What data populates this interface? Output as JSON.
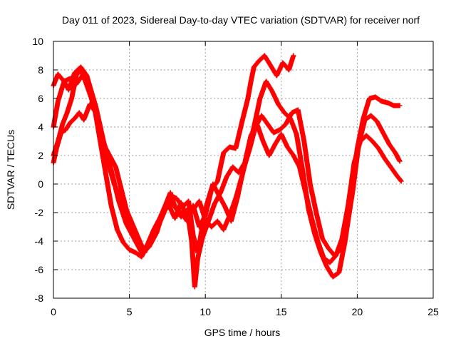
{
  "chart_data": {
    "type": "scatter",
    "title": "Day 011 of 2023, Sidereal Day-to-day VTEC variation (SDTVAR) for receiver norf",
    "xlabel": "GPS time / hours",
    "ylabel": "SDTVAR / TECUs",
    "xlim": [
      0,
      25
    ],
    "ylim": [
      -8,
      10
    ],
    "xticks": [
      "0",
      "5",
      "10",
      "15",
      "20",
      "25"
    ],
    "yticks": [
      "-8",
      "-6",
      "-4",
      "-2",
      "0",
      "2",
      "4",
      "6",
      "8",
      "10"
    ],
    "grid": true,
    "marker": "+",
    "color": "#ff0000",
    "series": [
      {
        "x": [
          0.0,
          0.3,
          0.7,
          1.0,
          1.4,
          1.8,
          2.2,
          2.6,
          3.0,
          3.4,
          3.8,
          4.2,
          4.6,
          5.0,
          5.4,
          5.8,
          6.2,
          6.6,
          7.0,
          7.4,
          7.7,
          8.0,
          8.4,
          8.8,
          9.2,
          9.6,
          10.0,
          10.4,
          10.8,
          11.2,
          11.6,
          12.0,
          12.4,
          12.8,
          13.0,
          13.2,
          13.5,
          13.9,
          14.3,
          14.7,
          15.1,
          15.5,
          15.8
        ],
        "y": [
          6.9,
          7.7,
          7.2,
          6.6,
          7.8,
          8.2,
          7.6,
          6.0,
          3.5,
          1.0,
          -1.5,
          -3.2,
          -4.1,
          -4.6,
          -4.8,
          -5.1,
          -4.2,
          -3.2,
          -2.4,
          -1.4,
          -0.6,
          -1.6,
          -2.0,
          -2.6,
          -1.5,
          -3.0,
          -2.2,
          -0.4,
          0.2,
          2.2,
          2.6,
          2.5,
          4.3,
          6.0,
          7.2,
          8.2,
          8.6,
          9.0,
          8.3,
          7.6,
          8.5,
          8.0,
          9.0
        ]
      },
      {
        "x": [
          0.0,
          0.3,
          0.7,
          1.1,
          1.5,
          1.9,
          2.3,
          2.8,
          3.3,
          3.8,
          4.3,
          4.8,
          5.3,
          5.8,
          6.3,
          6.8,
          7.2,
          7.6,
          8.0,
          8.4,
          8.8,
          9.2,
          9.6,
          10.0,
          10.4,
          10.8,
          11.2,
          11.6,
          12.0,
          12.4,
          12.8,
          13.2,
          13.6,
          14.0,
          14.4,
          14.8,
          15.2,
          15.6,
          16.0,
          16.4,
          16.8,
          17.2,
          17.6,
          18.0,
          18.4,
          18.8,
          19.2,
          19.6,
          20.0,
          20.4,
          20.8,
          21.2,
          21.6,
          22.0,
          22.4,
          22.8
        ],
        "y": [
          4.0,
          5.8,
          7.2,
          7.4,
          7.0,
          7.6,
          7.2,
          5.4,
          3.0,
          1.0,
          -1.2,
          -2.8,
          -3.8,
          -4.8,
          -4.4,
          -3.4,
          -2.0,
          -1.5,
          -2.4,
          -1.3,
          -2.4,
          -1.8,
          -1.2,
          -2.5,
          -3.0,
          -2.6,
          -3.2,
          -2.2,
          -1.0,
          0.5,
          2.2,
          4.0,
          6.0,
          7.2,
          6.5,
          5.6,
          5.0,
          4.6,
          3.5,
          1.0,
          -1.8,
          -3.5,
          -4.8,
          -5.8,
          -6.5,
          -6.2,
          -4.0,
          -1.0,
          2.5,
          4.6,
          6.0,
          6.1,
          5.8,
          5.7,
          5.5,
          5.5
        ]
      },
      {
        "x": [
          0.0,
          0.3,
          0.6,
          0.9,
          1.2,
          1.5,
          1.8,
          2.1,
          2.5,
          2.9,
          3.3,
          3.7,
          4.1,
          4.5,
          4.9,
          5.3,
          5.7,
          6.1,
          6.5,
          6.9,
          7.3,
          7.7,
          8.1,
          8.5,
          8.9,
          9.2,
          9.5,
          9.8,
          10.1,
          10.5,
          10.9,
          11.3,
          11.7,
          12.1,
          12.5,
          12.9,
          13.3,
          13.7,
          14.1,
          14.5,
          14.9,
          15.3,
          15.7,
          16.1,
          16.5,
          16.9,
          17.3,
          17.7,
          18.1,
          18.5,
          18.9,
          19.3,
          19.7,
          20.1,
          20.5,
          20.9,
          21.3,
          21.7,
          22.1,
          22.5,
          22.8
        ],
        "y": [
          2.0,
          3.0,
          4.2,
          5.0,
          6.0,
          7.6,
          8.0,
          7.2,
          6.0,
          4.5,
          2.8,
          2.0,
          1.2,
          -0.5,
          -2.2,
          -3.5,
          -4.2,
          -4.6,
          -3.8,
          -2.8,
          -1.8,
          -0.8,
          -1.0,
          -1.6,
          -1.2,
          -3.6,
          -4.8,
          -3.0,
          -1.4,
          0.0,
          -0.8,
          -1.6,
          -2.6,
          -1.0,
          1.0,
          2.4,
          4.0,
          4.8,
          4.2,
          3.6,
          3.8,
          4.2,
          5.0,
          5.2,
          3.0,
          0.0,
          -2.0,
          -3.8,
          -4.5,
          -5.0,
          -4.6,
          -3.2,
          -0.5,
          2.8,
          4.5,
          4.8,
          4.4,
          3.6,
          2.8,
          2.2,
          1.6
        ]
      },
      {
        "x": [
          0.0,
          0.2,
          0.5,
          0.8,
          1.1,
          1.4,
          1.7,
          2.0,
          2.4,
          2.8,
          3.2,
          3.6,
          4.0,
          4.4,
          4.8,
          5.2,
          5.6,
          6.0,
          6.4,
          6.8,
          7.2,
          7.6,
          8.0,
          8.4,
          8.8,
          9.1,
          9.3,
          9.5,
          9.8,
          10.2,
          10.6,
          11.0,
          11.4,
          11.8,
          12.2,
          12.6,
          13.0,
          13.4,
          13.8,
          14.2,
          14.6,
          15.0,
          15.4,
          15.8,
          16.2,
          16.6,
          17.0,
          17.4,
          17.8,
          18.2,
          18.6,
          19.0,
          19.4,
          19.8,
          20.2,
          20.6,
          21.0,
          21.4,
          21.8,
          22.2,
          22.6,
          22.9
        ],
        "y": [
          1.5,
          2.5,
          3.6,
          3.8,
          4.3,
          4.6,
          5.0,
          4.5,
          5.6,
          5.0,
          3.2,
          1.5,
          0.0,
          -1.0,
          -1.8,
          -2.8,
          -3.8,
          -4.8,
          -4.0,
          -3.2,
          -2.2,
          -1.2,
          -1.6,
          -2.3,
          -1.8,
          -4.0,
          -7.2,
          -5.2,
          -3.8,
          -2.6,
          -1.4,
          -0.6,
          0.5,
          1.2,
          0.8,
          1.5,
          3.4,
          4.2,
          3.0,
          2.0,
          2.8,
          3.5,
          2.6,
          2.0,
          1.2,
          -0.6,
          -2.4,
          -4.0,
          -5.2,
          -5.5,
          -5.0,
          -3.8,
          -1.5,
          1.5,
          3.0,
          3.4,
          3.0,
          2.5,
          1.8,
          1.2,
          0.6,
          0.2
        ]
      }
    ]
  }
}
